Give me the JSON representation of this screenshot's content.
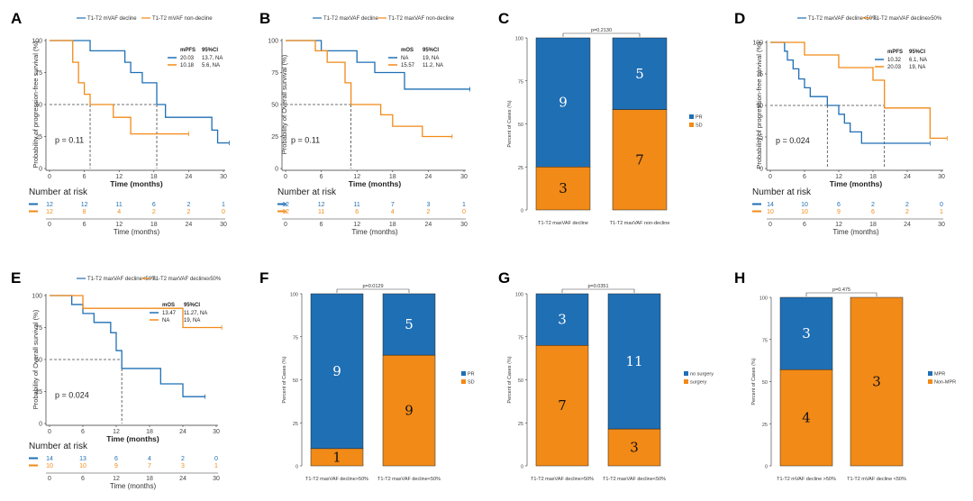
{
  "colors": {
    "blue": "#1f6fb5",
    "orange": "#f28a17"
  },
  "km_panels": [
    {
      "id": "A",
      "legend": [
        "T1-T2 mVAF decline",
        "T1-T2 mVAF non-decline"
      ],
      "stat_header": [
        "mPFS",
        "95%CI"
      ],
      "stats": [
        [
          "20.03",
          "13.7, NA"
        ],
        [
          "10.18",
          "5.6, NA"
        ]
      ],
      "ylabel": "Probability of progression-free survival (%)",
      "xlabel": "Time (months)",
      "x_ticks": [
        "0",
        "6",
        "12",
        "18",
        "24",
        "30"
      ],
      "y_ticks": [
        "0",
        "25",
        "50",
        "75",
        "100"
      ],
      "pvalue": "p = 0.11",
      "risk_title": "Number at risk",
      "risk_rows": [
        [
          "12",
          "12",
          "11",
          "6",
          "2",
          "1"
        ],
        [
          "12",
          "8",
          "4",
          "2",
          "2",
          "0"
        ]
      ],
      "risk_xlabel": "Time (months)"
    },
    {
      "id": "B",
      "legend": [
        "T1-T2 maxVAF decline",
        "T1-T2 maxVAF non-decline"
      ],
      "stat_header": [
        "mOS",
        "95%CI"
      ],
      "stats": [
        [
          "NA",
          "19, NA"
        ],
        [
          "15.57",
          "11.2, NA"
        ]
      ],
      "ylabel": "Probability of Overall survival (%)",
      "xlabel": "Time (months)",
      "x_ticks": [
        "0",
        "6",
        "12",
        "18",
        "24",
        "30"
      ],
      "y_ticks": [
        "0",
        "25",
        "50",
        "75",
        "100"
      ],
      "pvalue": "p = 0.11",
      "risk_title": "Number at risk",
      "risk_rows": [
        [
          "12",
          "12",
          "11",
          "7",
          "3",
          "1"
        ],
        [
          "12",
          "11",
          "6",
          "4",
          "2",
          "0"
        ]
      ],
      "risk_xlabel": "Time (months)"
    },
    {
      "id": "D",
      "legend": [
        "T1-T2 maxVAF decline<50%",
        "T1-T2 maxVAF decline≥50%"
      ],
      "stat_header": [
        "mPFS",
        "95%CI"
      ],
      "stats": [
        [
          "10.32",
          "6.1, NA"
        ],
        [
          "20.03",
          "19, NA"
        ]
      ],
      "ylabel": "Probability of progression-free survival (%)",
      "xlabel": "Time (months)",
      "x_ticks": [
        "0",
        "6",
        "12",
        "18",
        "24",
        "30"
      ],
      "y_ticks": [
        "0",
        "25",
        "50",
        "75",
        "100"
      ],
      "pvalue": "p = 0.024",
      "risk_title": "Number at risk",
      "risk_rows": [
        [
          "14",
          "10",
          "6",
          "2",
          "2",
          "0"
        ],
        [
          "10",
          "10",
          "9",
          "6",
          "2",
          "1"
        ]
      ],
      "risk_xlabel": "Time (months)"
    },
    {
      "id": "E",
      "legend": [
        "T1-T2 maxVAF decline<50%",
        "T1-T2 maxVAF decline≥50%"
      ],
      "stat_header": [
        "mOS",
        "95%CI"
      ],
      "stats": [
        [
          "13.47",
          "11.27, NA"
        ],
        [
          "NA",
          "19, NA"
        ]
      ],
      "ylabel": "Probability of Overall survival (%)",
      "xlabel": "Time (months)",
      "x_ticks": [
        "0",
        "6",
        "12",
        "18",
        "24",
        "30"
      ],
      "y_ticks": [
        "0",
        "25",
        "50",
        "75",
        "100"
      ],
      "pvalue": "p = 0.024",
      "risk_title": "Number at risk",
      "risk_rows": [
        [
          "14",
          "13",
          "6",
          "4",
          "2",
          "0"
        ],
        [
          "10",
          "10",
          "9",
          "7",
          "3",
          "1"
        ]
      ],
      "risk_xlabel": "Time (months)"
    }
  ],
  "bar_panels": [
    {
      "id": "C",
      "pvalue": "p=0.2130",
      "ylabel": "Percent of Cases (%)",
      "y_ticks": [
        "0",
        "25",
        "50",
        "75",
        "100"
      ],
      "categories": [
        "T1-T2 maxVAF decline",
        "T1-T2 maxVAF non-decline"
      ],
      "legend": [
        "PR",
        "SD"
      ],
      "blue_counts": [
        "9",
        "5"
      ],
      "orange_counts": [
        "3",
        "7"
      ],
      "orange_pct": [
        25,
        58.3
      ]
    },
    {
      "id": "F",
      "pvalue": "p=0.0129",
      "ylabel": "Percent of Cases (%)",
      "y_ticks": [
        "0",
        "25",
        "50",
        "75",
        "100"
      ],
      "categories": [
        "T1-T2 maxVAF decline>50%",
        "T1-T2 maxVAF decline<50%"
      ],
      "legend": [
        "PR",
        "SD"
      ],
      "blue_counts": [
        "9",
        "5"
      ],
      "orange_counts": [
        "1",
        "9"
      ],
      "orange_pct": [
        10,
        64.3
      ]
    },
    {
      "id": "G",
      "pvalue": "p=0.0351",
      "ylabel": "Percent of Cases (%)",
      "y_ticks": [
        "0",
        "25",
        "50",
        "75",
        "100"
      ],
      "categories": [
        "T1-T2 maxVAF decline>50%",
        "T1-T2 maxVAF decline<50%"
      ],
      "legend": [
        "no surgery",
        "surgery"
      ],
      "blue_counts": [
        "3",
        "11"
      ],
      "orange_counts": [
        "7",
        "3"
      ],
      "orange_pct": [
        70,
        21.4
      ]
    },
    {
      "id": "H",
      "pvalue": "p=0.475",
      "ylabel": "Percent of Cases (%)",
      "y_ticks": [
        "0",
        "25",
        "50",
        "75",
        "100"
      ],
      "categories": [
        "T1-T2 mVAF decline >50%",
        "T1-T2 mVAF decline <50%"
      ],
      "legend": [
        "MPR",
        "Non-MPR"
      ],
      "blue_counts": [
        "3",
        ""
      ],
      "orange_counts": [
        "4",
        "3"
      ],
      "orange_pct": [
        57.1,
        100
      ]
    }
  ],
  "chart_data": [
    {
      "type": "line",
      "panel": "A",
      "title": "",
      "xlabel": "Time (months)",
      "ylabel": "Probability of progression-free survival (%)",
      "xlim": [
        0,
        30
      ],
      "ylim": [
        0,
        100
      ],
      "series": [
        {
          "name": "T1-T2 mVAF decline",
          "x": [
            0,
            7,
            12,
            13,
            14,
            16,
            18.5,
            20,
            28,
            29,
            31
          ],
          "y": [
            100,
            92,
            92,
            83,
            75,
            67,
            50,
            40,
            30,
            20,
            20
          ]
        },
        {
          "name": "T1-T2 mVAF non-decline",
          "x": [
            0,
            4,
            5,
            6,
            7,
            8,
            11,
            14,
            24
          ],
          "y": [
            100,
            83,
            67,
            58,
            50,
            50,
            40,
            27,
            27
          ]
        }
      ]
    },
    {
      "type": "line",
      "panel": "B",
      "title": "",
      "xlabel": "Time (months)",
      "ylabel": "Probability of Overall survival (%)",
      "xlim": [
        0,
        30
      ],
      "ylim": [
        0,
        100
      ],
      "series": [
        {
          "name": "T1-T2 maxVAF decline",
          "x": [
            0,
            6,
            12,
            15,
            20,
            31
          ],
          "y": [
            100,
            92,
            83,
            75,
            62,
            62
          ]
        },
        {
          "name": "T1-T2 maxVAF non-decline",
          "x": [
            0,
            5,
            7,
            10,
            11,
            16,
            18,
            23,
            28
          ],
          "y": [
            100,
            92,
            83,
            67,
            50,
            42,
            33,
            25,
            25
          ]
        }
      ]
    },
    {
      "type": "bar",
      "panel": "C",
      "categories": [
        "T1-T2 maxVAF decline",
        "T1-T2 maxVAF non-decline"
      ],
      "series": [
        {
          "name": "PR",
          "values": [
            9,
            5
          ]
        },
        {
          "name": "SD",
          "values": [
            3,
            7
          ]
        }
      ],
      "ylabel": "Percent of Cases (%)",
      "ylim": [
        0,
        100
      ]
    },
    {
      "type": "line",
      "panel": "D",
      "title": "",
      "xlabel": "Time (months)",
      "ylabel": "Probability of progression-free survival (%)",
      "xlim": [
        0,
        30
      ],
      "ylim": [
        0,
        100
      ],
      "series": [
        {
          "name": "T1-T2 maxVAF decline<50%",
          "x": [
            0,
            2.5,
            3,
            4,
            5,
            6,
            7,
            10,
            12,
            13,
            14,
            16,
            28
          ],
          "y": [
            100,
            93,
            86,
            79,
            71,
            64,
            57,
            50,
            43,
            36,
            29,
            20,
            20
          ]
        },
        {
          "name": "T1-T2 maxVAF decline≥50%",
          "x": [
            0,
            6,
            12,
            18,
            20,
            28,
            31
          ],
          "y": [
            100,
            90,
            80,
            70,
            48,
            24,
            24
          ]
        }
      ]
    },
    {
      "type": "line",
      "panel": "E",
      "title": "",
      "xlabel": "Time (months)",
      "ylabel": "Probability of Overall survival (%)",
      "xlim": [
        0,
        30
      ],
      "ylim": [
        0,
        100
      ],
      "series": [
        {
          "name": "T1-T2 maxVAF decline<50%",
          "x": [
            0,
            4,
            6,
            8,
            11,
            12,
            13,
            20,
            24,
            28
          ],
          "y": [
            100,
            93,
            86,
            79,
            71,
            57,
            43,
            31,
            21,
            21
          ]
        },
        {
          "name": "T1-T2 maxVAF decline≥50%",
          "x": [
            0,
            6,
            24,
            31
          ],
          "y": [
            100,
            90,
            75,
            75
          ]
        }
      ]
    },
    {
      "type": "bar",
      "panel": "F",
      "categories": [
        "T1-T2 maxVAF decline>50%",
        "T1-T2 maxVAF decline<50%"
      ],
      "series": [
        {
          "name": "PR",
          "values": [
            9,
            5
          ]
        },
        {
          "name": "SD",
          "values": [
            1,
            9
          ]
        }
      ],
      "ylabel": "Percent of Cases (%)",
      "ylim": [
        0,
        100
      ]
    },
    {
      "type": "bar",
      "panel": "G",
      "categories": [
        "T1-T2 maxVAF decline>50%",
        "T1-T2 maxVAF decline<50%"
      ],
      "series": [
        {
          "name": "no surgery",
          "values": [
            3,
            11
          ]
        },
        {
          "name": "surgery",
          "values": [
            7,
            3
          ]
        }
      ],
      "ylabel": "Percent of Cases (%)",
      "ylim": [
        0,
        100
      ]
    },
    {
      "type": "bar",
      "panel": "H",
      "categories": [
        "T1-T2 mVAF decline >50%",
        "T1-T2 mVAF decline <50%"
      ],
      "series": [
        {
          "name": "MPR",
          "values": [
            3,
            0
          ]
        },
        {
          "name": "Non-MPR",
          "values": [
            4,
            3
          ]
        }
      ],
      "ylabel": "Percent of Cases (%)",
      "ylim": [
        0,
        100
      ]
    }
  ]
}
